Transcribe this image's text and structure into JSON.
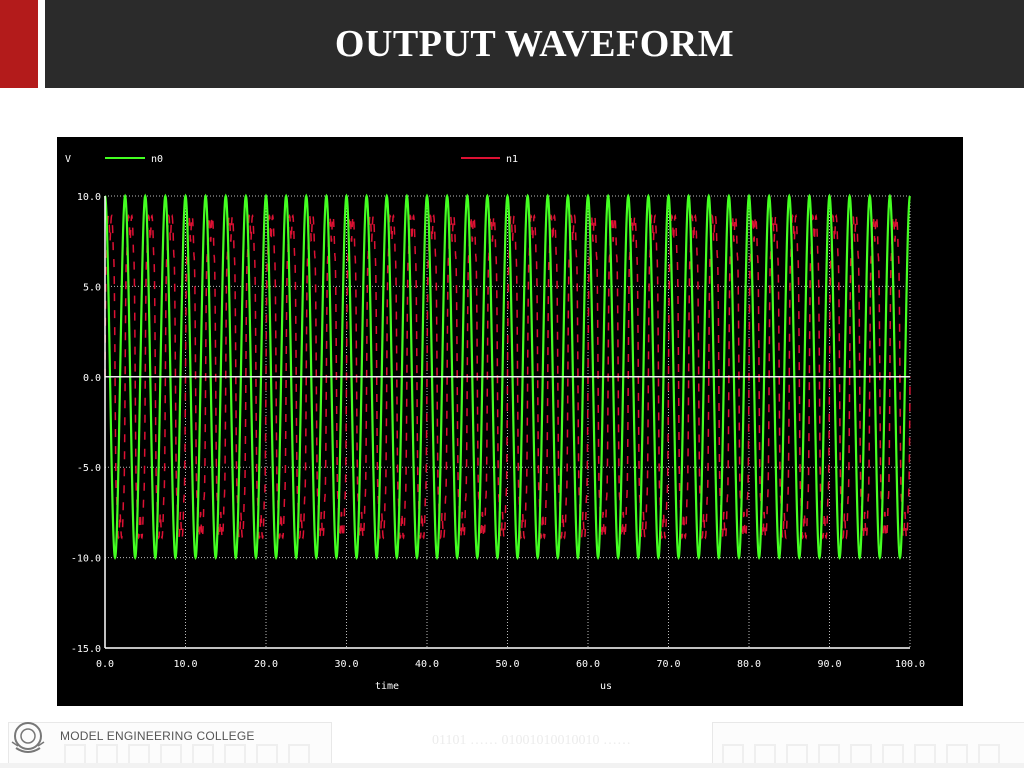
{
  "header": {
    "title": "OUTPUT WAVEFORM",
    "accent_color": "#b31b1b",
    "bar_color": "#2b2b2b"
  },
  "footer": {
    "college_name": "MODEL ENGINEERING COLLEGE",
    "binary_text": "01101 …… 01001010010010 ……",
    "logo_icon": "college-emblem-icon"
  },
  "chart_data": {
    "type": "line",
    "title": "",
    "xlabel": "time",
    "xunit": "us",
    "ylabel": "V",
    "xlim": [
      0,
      100
    ],
    "ylim": [
      -15,
      10
    ],
    "grid": true,
    "x_ticks": [
      "0.0",
      "10.0",
      "20.0",
      "30.0",
      "40.0",
      "50.0",
      "60.0",
      "70.0",
      "80.0",
      "90.0",
      "100.0"
    ],
    "y_ticks": [
      "10.0",
      "5.0",
      "0.0",
      "-5.0",
      "-10.0",
      "-15.0"
    ],
    "legend_placement": "top",
    "series": [
      {
        "name": "n0",
        "color": "#44ff22",
        "waveform": "sine",
        "amplitude_v": 10,
        "offset_v": 0,
        "cycles": 40,
        "x_start": 0,
        "x_end": 100
      },
      {
        "name": "n1",
        "color": "#dd1133",
        "waveform": "modulated-square",
        "amplitude_v": 9,
        "offset_v": 0,
        "cycles": 40,
        "x_start": 0,
        "x_end": 100
      }
    ]
  }
}
